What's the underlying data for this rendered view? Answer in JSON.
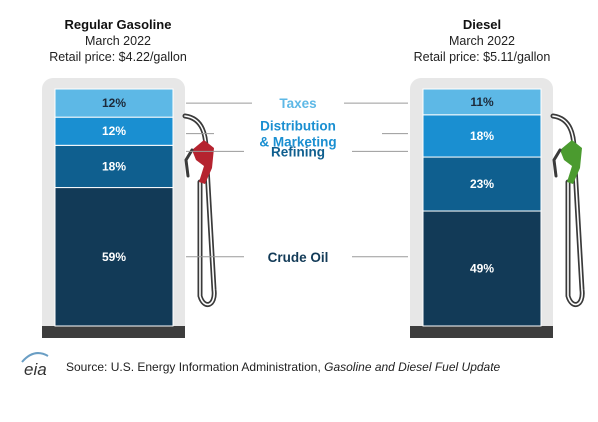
{
  "chart_data": {
    "type": "stacked-bar",
    "unit": "%",
    "categories": [
      "Crude Oil",
      "Refining",
      "Distribution & Marketing",
      "Taxes"
    ],
    "category_labels": [
      [
        "Crude Oil"
      ],
      [
        "Refining"
      ],
      [
        "Distribution",
        "& Marketing"
      ],
      [
        "Taxes"
      ]
    ],
    "category_colors": [
      "#123a57",
      "#0f5f8f",
      "#1a8fd1",
      "#5db8e6"
    ],
    "category_label_colors": [
      "#123a57",
      "#0f5f8f",
      "#1a8fd1",
      "#5db8e6"
    ],
    "bars": [
      {
        "title": "Regular Gasoline",
        "subtitle": "March 2022",
        "price_label": "Retail price: $4.22/gallon",
        "values": [
          59,
          18,
          12,
          12
        ],
        "value_labels": [
          "59%",
          "18%",
          "12%",
          "12%"
        ],
        "nozzle_color": "#b5232f"
      },
      {
        "title": "Diesel",
        "subtitle": "March 2022",
        "price_label": "Retail price: $5.11/gallon",
        "values": [
          49,
          23,
          18,
          11
        ],
        "value_labels": [
          "49%",
          "23%",
          "18%",
          "11%"
        ],
        "nozzle_color": "#4b9b2f"
      }
    ]
  },
  "source": {
    "logo_text": "eia",
    "prefix": "Source: U.S. Energy Information Administration, ",
    "title": "Gasoline and Diesel Fuel Update"
  }
}
